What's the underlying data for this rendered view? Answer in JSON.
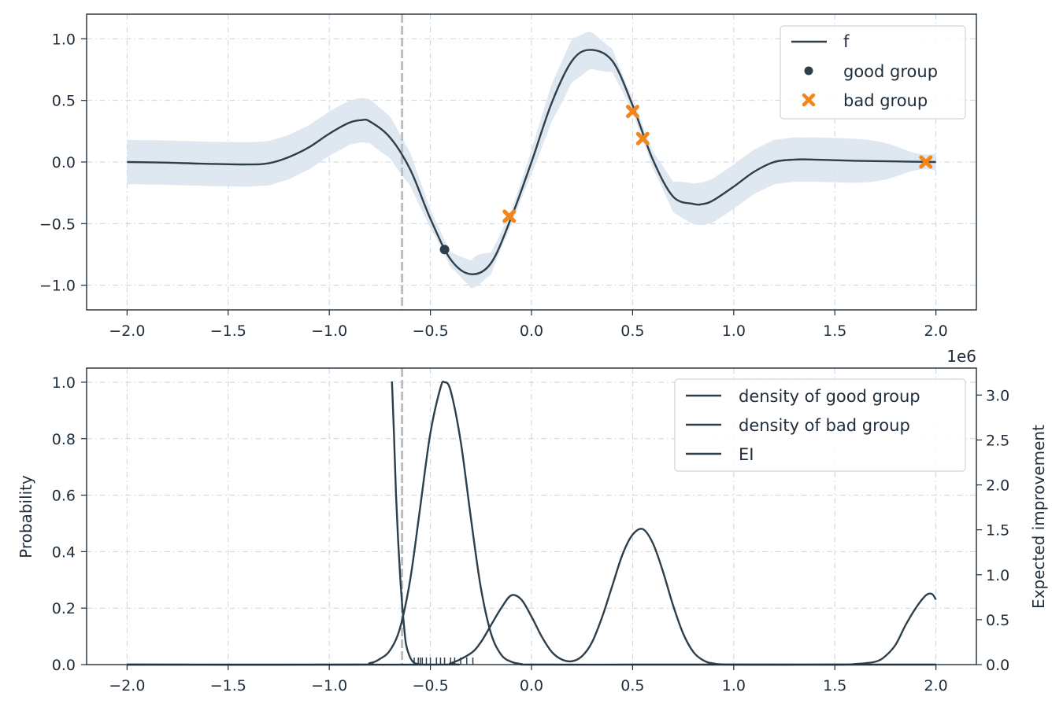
{
  "chart_data": [
    {
      "type": "line",
      "offset_label": "",
      "xlim": [
        -2.2,
        2.2
      ],
      "ylim": [
        -1.2,
        1.2
      ],
      "xticks": [
        -2.0,
        -1.5,
        -1.0,
        -0.5,
        0.0,
        0.5,
        1.0,
        1.5,
        2.0
      ],
      "yticks": [
        -1.0,
        -0.5,
        0.0,
        0.5,
        1.0
      ],
      "grid": true,
      "legend_placement": "top-right",
      "vline_x": -0.64,
      "series": [
        {
          "name": "f",
          "kind": "line",
          "color": "#2e3f4c",
          "x": [
            -2.0,
            -1.8,
            -1.6,
            -1.4,
            -1.3,
            -1.2,
            -1.1,
            -1.0,
            -0.9,
            -0.84,
            -0.8,
            -0.7,
            -0.6,
            -0.5,
            -0.4,
            -0.3,
            -0.2,
            -0.1,
            0.0,
            0.1,
            0.2,
            0.29,
            0.4,
            0.5,
            0.6,
            0.7,
            0.8,
            0.85,
            0.9,
            1.0,
            1.1,
            1.2,
            1.3,
            1.4,
            1.5,
            1.6,
            1.8,
            2.0
          ],
          "y": [
            0.0,
            -0.005,
            -0.015,
            -0.02,
            -0.01,
            0.04,
            0.12,
            0.23,
            0.32,
            0.34,
            0.33,
            0.2,
            -0.06,
            -0.46,
            -0.79,
            -0.91,
            -0.82,
            -0.45,
            0.0,
            0.48,
            0.82,
            0.91,
            0.82,
            0.46,
            0.02,
            -0.28,
            -0.34,
            -0.34,
            -0.31,
            -0.2,
            -0.08,
            0.0,
            0.02,
            0.02,
            0.015,
            0.01,
            0.005,
            0.0
          ]
        },
        {
          "name": "good group",
          "kind": "scatter",
          "marker": "circle",
          "color": "#2e3f4c",
          "x": [
            -0.43
          ],
          "y": [
            -0.71
          ]
        },
        {
          "name": "bad group",
          "kind": "scatter",
          "marker": "x",
          "color": "#f58518",
          "x": [
            -0.11,
            0.5,
            0.55,
            1.95
          ],
          "y": [
            -0.44,
            0.41,
            0.19,
            0.0
          ]
        }
      ]
    },
    {
      "type": "line",
      "offset_label": "1e6",
      "xlim": [
        -2.2,
        2.2
      ],
      "ylim": [
        0.0,
        1.05
      ],
      "y2lim": [
        0.0,
        3.3
      ],
      "xticks": [
        -2.0,
        -1.5,
        -1.0,
        -0.5,
        0.0,
        0.5,
        1.0,
        1.5,
        2.0
      ],
      "yticks": [
        0.0,
        0.2,
        0.4,
        0.6,
        0.8,
        1.0
      ],
      "y2ticks": [
        0.0,
        0.5,
        1.0,
        1.5,
        2.0,
        2.5,
        3.0
      ],
      "ylabel": "Probability",
      "y2label": "Expected improvement",
      "grid": true,
      "legend_placement": "top-right",
      "vline_x": -0.64,
      "rug_x": [
        -0.58,
        -0.56,
        -0.55,
        -0.54,
        -0.52,
        -0.5,
        -0.47,
        -0.45,
        -0.43,
        -0.4,
        -0.38,
        -0.35,
        -0.32,
        -0.29
      ],
      "series": [
        {
          "name": "density of good group",
          "color": "#2e3f4c",
          "x": [
            -2.0,
            -0.9,
            -0.8,
            -0.75,
            -0.7,
            -0.65,
            -0.6,
            -0.55,
            -0.5,
            -0.45,
            -0.43,
            -0.4,
            -0.35,
            -0.3,
            -0.25,
            -0.2,
            -0.15,
            -0.1,
            -0.05,
            0.0,
            0.5,
            1.0,
            2.0
          ],
          "y": [
            0.0,
            0.0,
            0.005,
            0.02,
            0.05,
            0.13,
            0.3,
            0.56,
            0.82,
            0.98,
            1.0,
            0.97,
            0.79,
            0.52,
            0.27,
            0.11,
            0.035,
            0.01,
            0.002,
            0.0,
            0.0,
            0.0,
            0.0
          ]
        },
        {
          "name": "density of bad group",
          "color": "#2e3f4c",
          "x": [
            -2.0,
            -0.5,
            -0.4,
            -0.3,
            -0.25,
            -0.2,
            -0.15,
            -0.1,
            -0.05,
            0.0,
            0.05,
            0.1,
            0.15,
            0.2,
            0.25,
            0.3,
            0.35,
            0.4,
            0.45,
            0.5,
            0.55,
            0.6,
            0.65,
            0.7,
            0.75,
            0.8,
            0.85,
            0.9,
            1.0,
            1.5,
            1.6,
            1.7,
            1.75,
            1.8,
            1.85,
            1.9,
            1.95,
            1.98,
            2.0
          ],
          "y": [
            0.0,
            0.0,
            0.005,
            0.04,
            0.08,
            0.14,
            0.2,
            0.245,
            0.23,
            0.17,
            0.1,
            0.045,
            0.018,
            0.012,
            0.03,
            0.08,
            0.17,
            0.28,
            0.39,
            0.46,
            0.48,
            0.43,
            0.33,
            0.21,
            0.11,
            0.045,
            0.015,
            0.004,
            0.0,
            0.0,
            0.002,
            0.01,
            0.03,
            0.07,
            0.14,
            0.2,
            0.245,
            0.25,
            0.23
          ]
        },
        {
          "name": "EI",
          "color": "#2e3f4c",
          "axis": "right",
          "x": [
            -0.69,
            -0.68,
            -0.67,
            -0.66,
            -0.65,
            -0.64,
            -0.63,
            -0.62,
            -0.6,
            -0.58,
            -0.55
          ],
          "y": [
            3.15,
            2.55,
            1.9,
            1.4,
            1.0,
            0.68,
            0.42,
            0.22,
            0.08,
            0.02,
            0.0
          ]
        }
      ]
    }
  ]
}
